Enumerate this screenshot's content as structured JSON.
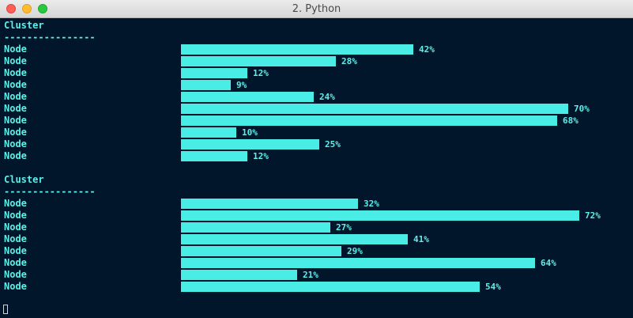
{
  "window": {
    "title": "2. Python"
  },
  "clusters": [
    {
      "heading": "Cluster",
      "separator": "----------------",
      "nodes": [
        {
          "label": "Node",
          "value": 42,
          "text": "42%"
        },
        {
          "label": "Node",
          "value": 28,
          "text": "28%"
        },
        {
          "label": "Node",
          "value": 12,
          "text": "12%"
        },
        {
          "label": "Node",
          "value": 9,
          "text": "9%"
        },
        {
          "label": "Node",
          "value": 24,
          "text": "24%"
        },
        {
          "label": "Node",
          "value": 70,
          "text": "70%"
        },
        {
          "label": "Node",
          "value": 68,
          "text": "68%"
        },
        {
          "label": "Node",
          "value": 10,
          "text": "10%"
        },
        {
          "label": "Node",
          "value": 25,
          "text": "25%"
        },
        {
          "label": "Node",
          "value": 12,
          "text": "12%"
        }
      ]
    },
    {
      "heading": "Cluster",
      "separator": "----------------",
      "nodes": [
        {
          "label": "Node",
          "value": 32,
          "text": "32%"
        },
        {
          "label": "Node",
          "value": 72,
          "text": "72%"
        },
        {
          "label": "Node",
          "value": 27,
          "text": "27%"
        },
        {
          "label": "Node",
          "value": 41,
          "text": "41%"
        },
        {
          "label": "Node",
          "value": 29,
          "text": "29%"
        },
        {
          "label": "Node",
          "value": 64,
          "text": "64%"
        },
        {
          "label": "Node",
          "value": 21,
          "text": "21%"
        },
        {
          "label": "Node",
          "value": 54,
          "text": "54%"
        }
      ]
    }
  ],
  "colors": {
    "background": "#01162b",
    "text": "#5cf0e9",
    "bar": "#4aece6"
  }
}
